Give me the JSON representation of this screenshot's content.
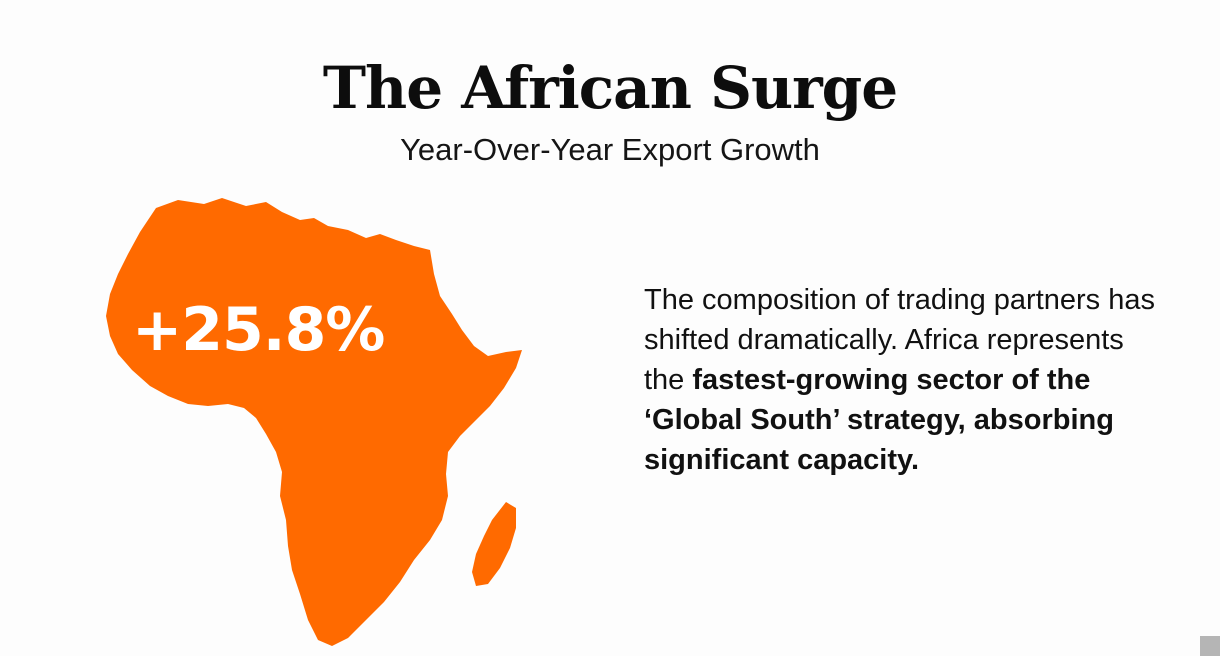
{
  "slide": {
    "title": "The African Surge",
    "subtitle": "Year-Over-Year Export Growth",
    "stat_value": "+25.8%",
    "body_text_plain": "The composition of trading partners has shifted dramatically. Africa represents the",
    "body_text_bold": "fastest-growing sector of the ‘Global South’ strategy, absorbing significant capacity.",
    "map_icon": "africa-map-icon",
    "accent_color": "#ff6a00"
  }
}
